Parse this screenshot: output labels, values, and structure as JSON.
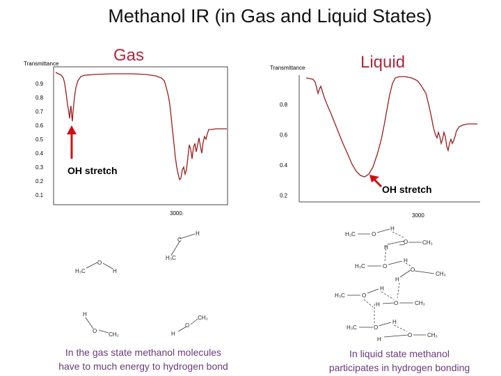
{
  "title": "Methanol IR (in Gas and Liquid States)",
  "gas": {
    "heading": "Gas",
    "y_axis_label": "Transmittance",
    "y_ticks": [
      "0.9",
      "0.8",
      "0.7",
      "0.6",
      "0.5",
      "0.4",
      "0.3",
      "0.2",
      "0.1"
    ],
    "x_tick": "3000.",
    "annotation": "OH stretch",
    "caption_line1": "In the gas state methanol molecules",
    "caption_line2": "have to much energy to hydrogen bond"
  },
  "liquid": {
    "heading": "Liquid",
    "y_axis_label": "Transmittance",
    "y_ticks": [
      "0.8",
      "0.6",
      "0.4",
      "0.2"
    ],
    "x_tick": "3000",
    "annotation": "OH stretch",
    "caption_line1": "In liquid state methanol",
    "caption_line2": "participates in hydrogen bonding"
  },
  "colors": {
    "spectrum": "#9b1b1b",
    "heading": "#b0283d",
    "annotation": "#c0142b",
    "caption": "#6b3a7a"
  }
}
